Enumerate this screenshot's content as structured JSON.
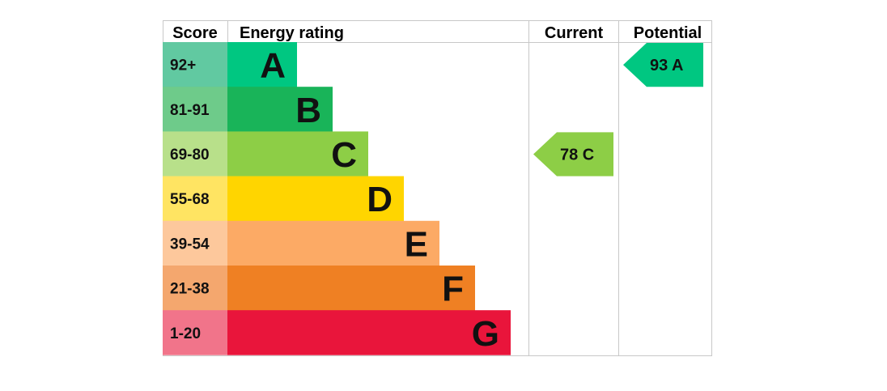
{
  "chart_data": {
    "type": "bar",
    "headers": {
      "score": "Score",
      "energy_rating": "Energy rating",
      "current": "Current",
      "potential": "Potential"
    },
    "bands": [
      {
        "letter": "A",
        "range": "92+",
        "min": 92,
        "max": 100,
        "color": "#00c781",
        "score_bg": "#61c9a1"
      },
      {
        "letter": "B",
        "range": "81-91",
        "min": 81,
        "max": 91,
        "color": "#19b459",
        "score_bg": "#6ecb8a"
      },
      {
        "letter": "C",
        "range": "69-80",
        "min": 69,
        "max": 80,
        "color": "#8dce46",
        "score_bg": "#b8e08a"
      },
      {
        "letter": "D",
        "range": "55-68",
        "min": 55,
        "max": 68,
        "color": "#ffd500",
        "score_bg": "#ffe462"
      },
      {
        "letter": "E",
        "range": "39-54",
        "min": 39,
        "max": 54,
        "color": "#fcaa65",
        "score_bg": "#fdc89c"
      },
      {
        "letter": "F",
        "range": "21-38",
        "min": 21,
        "max": 38,
        "color": "#ef8023",
        "score_bg": "#f4a76e"
      },
      {
        "letter": "G",
        "range": "1-20",
        "min": 1,
        "max": 20,
        "color": "#e9153b",
        "score_bg": "#f1748a"
      }
    ],
    "current": {
      "value": 78,
      "letter": "C",
      "label": "78  C",
      "color": "#8dce46"
    },
    "potential": {
      "value": 93,
      "letter": "A",
      "label": "93  A",
      "color": "#00c781"
    }
  }
}
